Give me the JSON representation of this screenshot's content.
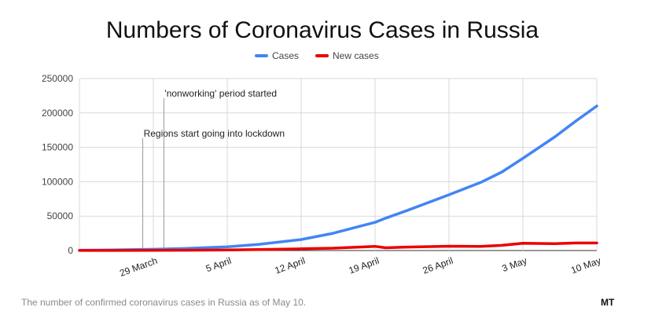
{
  "chart_data": {
    "type": "line",
    "title": "Numbers of Coronavirus Cases in Russia",
    "xlabel": "",
    "ylabel": "",
    "x": [
      "2020-03-22",
      "2020-03-25",
      "2020-03-29",
      "2020-04-01",
      "2020-04-05",
      "2020-04-08",
      "2020-04-12",
      "2020-04-15",
      "2020-04-19",
      "2020-04-20",
      "2020-04-22",
      "2020-04-26",
      "2020-04-29",
      "2020-05-01",
      "2020-05-03",
      "2020-05-06",
      "2020-05-08",
      "2020-05-10"
    ],
    "series": [
      {
        "name": "Cases",
        "color": "#4285f4",
        "values": [
          400,
          900,
          1800,
          3000,
          5400,
          9000,
          16000,
          25000,
          41000,
          47000,
          58000,
          81000,
          99000,
          114000,
          134000,
          165000,
          188000,
          210000
        ]
      },
      {
        "name": "New cases",
        "color": "#ea0000",
        "values": [
          60,
          150,
          270,
          450,
          900,
          1500,
          2500,
          3400,
          6000,
          4000,
          5000,
          6300,
          6000,
          7500,
          10600,
          10000,
          11000,
          11000
        ]
      }
    ],
    "y_ticks": [
      "250000",
      "200000",
      "150000",
      "100000",
      "50000",
      "0"
    ],
    "ylim": [
      0,
      250000
    ],
    "x_tick_labels": [
      "29 March",
      "5 April",
      "12 April",
      "19 April",
      "26 April",
      "3 May",
      "10 May"
    ],
    "x_tick_dates": [
      "2020-03-29",
      "2020-04-05",
      "2020-04-12",
      "2020-04-19",
      "2020-04-26",
      "2020-05-03",
      "2020-05-10"
    ],
    "xlim": [
      "2020-03-22",
      "2020-05-10"
    ],
    "legend": "top-center",
    "grid": true,
    "annotations": [
      {
        "date": "2020-03-30",
        "text": "'nonworking' period started",
        "y": 210000
      },
      {
        "date": "2020-03-28",
        "text": "Regions start going into lockdown",
        "y": 152000
      }
    ]
  },
  "caption": "The number of confirmed coronavirus cases in Russia as of May 10.",
  "logo": "MT"
}
